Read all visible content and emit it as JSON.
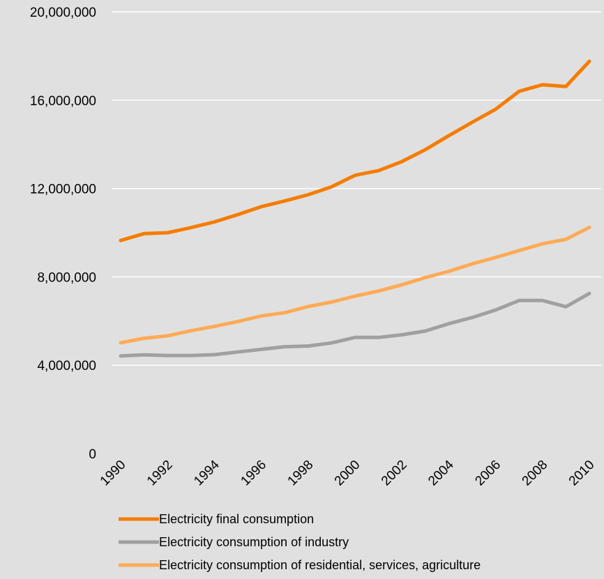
{
  "chart_data": {
    "type": "line",
    "title": "",
    "xlabel": "",
    "ylabel": "",
    "x": [
      1990,
      1991,
      1992,
      1993,
      1994,
      1995,
      1996,
      1997,
      1998,
      1999,
      2000,
      2001,
      2002,
      2003,
      2004,
      2005,
      2006,
      2007,
      2008,
      2009,
      2010
    ],
    "x_tick_labels": [
      "1990",
      "1992",
      "1994",
      "1996",
      "1998",
      "2000",
      "2002",
      "2004",
      "2006",
      "2008",
      "2010"
    ],
    "ylim": [
      0,
      20000000
    ],
    "y_tick_labels": [
      "0",
      "4,000,000",
      "8,000,000",
      "12,000,000",
      "16,000,000",
      "20,000,000"
    ],
    "y_ticks": [
      0,
      4000000,
      8000000,
      12000000,
      16000000,
      20000000
    ],
    "grid": "horizontal",
    "legend_position": "bottom",
    "series": [
      {
        "name": "Electricity final consumption",
        "color": "#f57c00",
        "values": [
          9650000,
          9960000,
          10000000,
          10230000,
          10490000,
          10820000,
          11180000,
          11440000,
          11720000,
          12080000,
          12600000,
          12810000,
          13220000,
          13760000,
          14390000,
          15000000,
          15590000,
          16400000,
          16700000,
          16620000,
          17760000
        ]
      },
      {
        "name": "Electricity consumption of industry",
        "color": "#a0a0a0",
        "values": [
          4420000,
          4470000,
          4440000,
          4440000,
          4480000,
          4600000,
          4720000,
          4840000,
          4870000,
          5010000,
          5260000,
          5260000,
          5380000,
          5550000,
          5880000,
          6160000,
          6500000,
          6930000,
          6930000,
          6650000,
          7250000
        ]
      },
      {
        "name": "Electricity consumption of residential, services, agriculture",
        "color": "#ffaa55",
        "values": [
          5020000,
          5220000,
          5330000,
          5560000,
          5760000,
          5980000,
          6230000,
          6380000,
          6660000,
          6860000,
          7130000,
          7360000,
          7640000,
          7970000,
          8250000,
          8590000,
          8880000,
          9190000,
          9500000,
          9700000,
          10240000
        ]
      }
    ]
  }
}
